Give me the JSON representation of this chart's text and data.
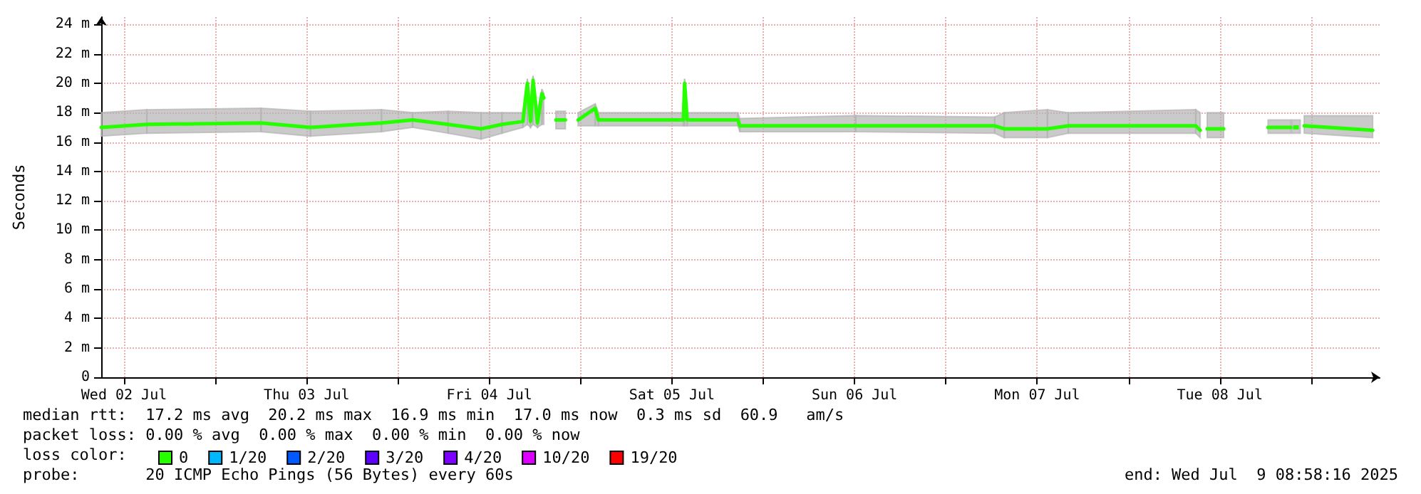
{
  "chart_data": {
    "type": "line",
    "ylabel": "Seconds",
    "legend_title": "loss color:",
    "legend": "bottom left",
    "grid": true,
    "marker": "none",
    "line_style": "solid",
    "xlim": [
      "2025-07-02T09:00",
      "2025-07-09T09:00"
    ],
    "xticks": [
      {
        "value": "2025-07-02T12:00",
        "label": "Wed 02 Jul"
      },
      {
        "value": "2025-07-03T00:00",
        "label": null
      },
      {
        "value": "2025-07-03T12:00",
        "label": "Thu 03 Jul"
      },
      {
        "value": "2025-07-04T00:00",
        "label": null
      },
      {
        "value": "2025-07-04T12:00",
        "label": "Fri 04 Jul"
      },
      {
        "value": "2025-07-05T00:00",
        "label": null
      },
      {
        "value": "2025-07-05T12:00",
        "label": "Sat 05 Jul"
      },
      {
        "value": "2025-07-06T00:00",
        "label": null
      },
      {
        "value": "2025-07-06T12:00",
        "label": "Sun 06 Jul"
      },
      {
        "value": "2025-07-07T00:00",
        "label": null
      },
      {
        "value": "2025-07-07T12:00",
        "label": "Mon 07 Jul"
      },
      {
        "value": "2025-07-08T00:00",
        "label": null
      },
      {
        "value": "2025-07-08T12:00",
        "label": "Tue 08 Jul"
      },
      {
        "value": "2025-07-09T00:00",
        "label": null
      }
    ],
    "ylim": [
      0,
      24.5
    ],
    "yticks": [
      0,
      {
        "value": 2,
        "label": "2 m"
      },
      {
        "value": 4,
        "label": "4 m"
      },
      {
        "value": 6,
        "label": "6 m"
      },
      {
        "value": 8,
        "label": "8 m"
      },
      {
        "value": 10,
        "label": "10 m"
      },
      {
        "value": 12,
        "label": "12 m"
      },
      {
        "value": 14,
        "label": "14 m"
      },
      {
        "value": 16,
        "label": "16 m"
      },
      {
        "value": 18,
        "label": "18 m"
      },
      {
        "value": 20,
        "label": "20 m"
      },
      {
        "value": 22,
        "label": "22 m"
      },
      {
        "value": 24,
        "label": "24 m"
      }
    ],
    "x": [
      "2025-07-02T09:00",
      "2025-07-02T15:00",
      "2025-07-03T06:00",
      "2025-07-03T12:30",
      "2025-07-03T21:50",
      "2025-07-04T01:55",
      "2025-07-04T06:35",
      "2025-07-04T10:55",
      "2025-07-04T13:40",
      "2025-07-04T16:25",
      "2025-07-04T17:00",
      "2025-07-04T17:25",
      "2025-07-04T17:45",
      "2025-07-04T18:20",
      "2025-07-04T18:55",
      "2025-07-04T19:10",
      "2025-07-04T19:55",
      "2025-07-04T20:45",
      "2025-07-04T22:00",
      "2025-07-04T22:50",
      "2025-07-04T23:40",
      "2025-07-05T01:55",
      "2025-07-05T02:20",
      "2025-07-05T13:30",
      "2025-07-05T13:40",
      "2025-07-05T14:00",
      "2025-07-05T20:40",
      "2025-07-05T20:55",
      "2025-07-06T12:10",
      "2025-07-07T06:25",
      "2025-07-07T07:40",
      "2025-07-07T13:20",
      "2025-07-07T16:05",
      "2025-07-08T08:50",
      "2025-07-08T09:25",
      "2025-07-08T09:45",
      "2025-07-08T10:20",
      "2025-07-08T12:30",
      "2025-07-08T15:20",
      "2025-07-08T18:20",
      "2025-07-08T21:20",
      "2025-07-08T21:40",
      "2025-07-08T22:00",
      "2025-07-08T22:35",
      "2025-07-08T23:05",
      "2025-07-09T08:05"
    ],
    "series": [
      {
        "name": "0",
        "color": "#26ff00",
        "values": [
          17.0,
          17.2,
          17.3,
          17.0,
          17.3,
          17.5,
          17.2,
          16.9,
          17.2,
          17.4,
          20.0,
          17.4,
          20.2,
          17.3,
          19.3,
          19.0,
          null,
          17.5,
          17.5,
          null,
          17.5,
          18.3,
          17.5,
          17.5,
          20.0,
          17.5,
          17.5,
          17.1,
          17.1,
          17.1,
          16.9,
          16.9,
          17.1,
          17.1,
          16.8,
          null,
          16.9,
          16.9,
          null,
          17.0,
          17.0,
          null,
          17.0,
          null,
          17.1,
          16.8
        ],
        "lower": [
          16.4,
          16.6,
          16.7,
          16.4,
          16.7,
          17.0,
          16.6,
          16.2,
          16.6,
          17.0,
          17.2,
          17.0,
          17.2,
          17.0,
          17.2,
          17.2,
          null,
          16.9,
          16.9,
          null,
          17.1,
          17.1,
          17.1,
          17.1,
          17.1,
          17.1,
          17.1,
          16.7,
          16.7,
          16.6,
          16.3,
          16.3,
          16.6,
          16.6,
          16.3,
          null,
          16.3,
          16.3,
          null,
          16.6,
          16.6,
          null,
          16.6,
          null,
          16.6,
          16.3
        ],
        "upper": [
          18.0,
          18.2,
          18.3,
          18.1,
          18.2,
          18.0,
          18.1,
          18.0,
          18.0,
          18.0,
          20.3,
          18.2,
          20.5,
          18.2,
          19.6,
          19.3,
          null,
          18.1,
          18.1,
          null,
          18.0,
          18.6,
          18.0,
          18.0,
          20.3,
          18.0,
          18.0,
          17.6,
          17.8,
          17.7,
          18.0,
          18.2,
          18.0,
          18.2,
          18.0,
          null,
          18.0,
          18.0,
          null,
          17.5,
          17.5,
          null,
          17.5,
          null,
          17.8,
          17.8
        ]
      },
      {
        "name": "1/20",
        "color": "#00b8ff",
        "values": [
          null,
          null,
          null,
          null,
          null,
          null,
          null,
          null,
          null,
          null,
          null,
          null,
          null,
          null,
          null,
          null,
          null,
          null,
          null,
          null,
          null,
          null,
          null,
          null,
          null,
          null,
          null,
          null,
          null,
          null,
          null,
          null,
          null,
          null,
          null,
          null,
          null,
          null,
          null,
          null,
          null,
          null,
          null,
          null,
          null,
          null
        ]
      },
      {
        "name": "2/20",
        "color": "#0059ff",
        "values": [
          null,
          null,
          null,
          null,
          null,
          null,
          null,
          null,
          null,
          null,
          null,
          null,
          null,
          null,
          null,
          null,
          null,
          null,
          null,
          null,
          null,
          null,
          null,
          null,
          null,
          null,
          null,
          null,
          null,
          null,
          null,
          null,
          null,
          null,
          null,
          null,
          null,
          null,
          null,
          null,
          null,
          null,
          null,
          null,
          null,
          null
        ]
      },
      {
        "name": "3/20",
        "color": "#5e00ff",
        "values": [
          null,
          null,
          null,
          null,
          null,
          null,
          null,
          null,
          null,
          null,
          null,
          null,
          null,
          null,
          null,
          null,
          null,
          null,
          null,
          null,
          null,
          null,
          null,
          null,
          null,
          null,
          null,
          null,
          null,
          null,
          null,
          null,
          null,
          null,
          null,
          null,
          null,
          null,
          null,
          null,
          null,
          null,
          null,
          null,
          null,
          null
        ]
      },
      {
        "name": "4/20",
        "color": "#7e00ff",
        "values": [
          null,
          null,
          null,
          null,
          null,
          null,
          null,
          null,
          null,
          null,
          null,
          null,
          null,
          null,
          null,
          null,
          null,
          null,
          null,
          null,
          null,
          null,
          null,
          null,
          null,
          null,
          null,
          null,
          null,
          null,
          null,
          null,
          null,
          null,
          null,
          null,
          null,
          null,
          null,
          null,
          null,
          null,
          null,
          null,
          null,
          null
        ]
      },
      {
        "name": "10/20",
        "color": "#dd00ff",
        "values": [
          null,
          null,
          null,
          null,
          null,
          null,
          null,
          null,
          null,
          null,
          null,
          null,
          null,
          null,
          null,
          null,
          null,
          null,
          null,
          null,
          null,
          null,
          null,
          null,
          null,
          null,
          null,
          null,
          null,
          null,
          null,
          null,
          null,
          null,
          null,
          null,
          null,
          null,
          null,
          null,
          null,
          null,
          null,
          null,
          null,
          null
        ]
      },
      {
        "name": "19/20",
        "color": "#ff0000",
        "values": [
          null,
          null,
          null,
          null,
          null,
          null,
          null,
          null,
          null,
          null,
          null,
          null,
          null,
          null,
          null,
          null,
          null,
          null,
          null,
          null,
          null,
          null,
          null,
          null,
          null,
          null,
          null,
          null,
          null,
          null,
          null,
          null,
          null,
          null,
          null,
          null,
          null,
          null,
          null,
          null,
          null,
          null,
          null,
          null,
          null,
          null
        ]
      }
    ],
    "annotations": [
      "median rtt:  17.2 ms avg  20.2 ms max  16.9 ms min  17.0 ms now  0.3 ms sd  60.9   am/s",
      "packet loss: 0.00 % avg  0.00 % max  0.00 % min  0.00 % now",
      "probe:       20 ICMP Echo Pings (56 Bytes) every 60s",
      "end: Wed Jul  9 08:58:16 2025"
    ]
  }
}
